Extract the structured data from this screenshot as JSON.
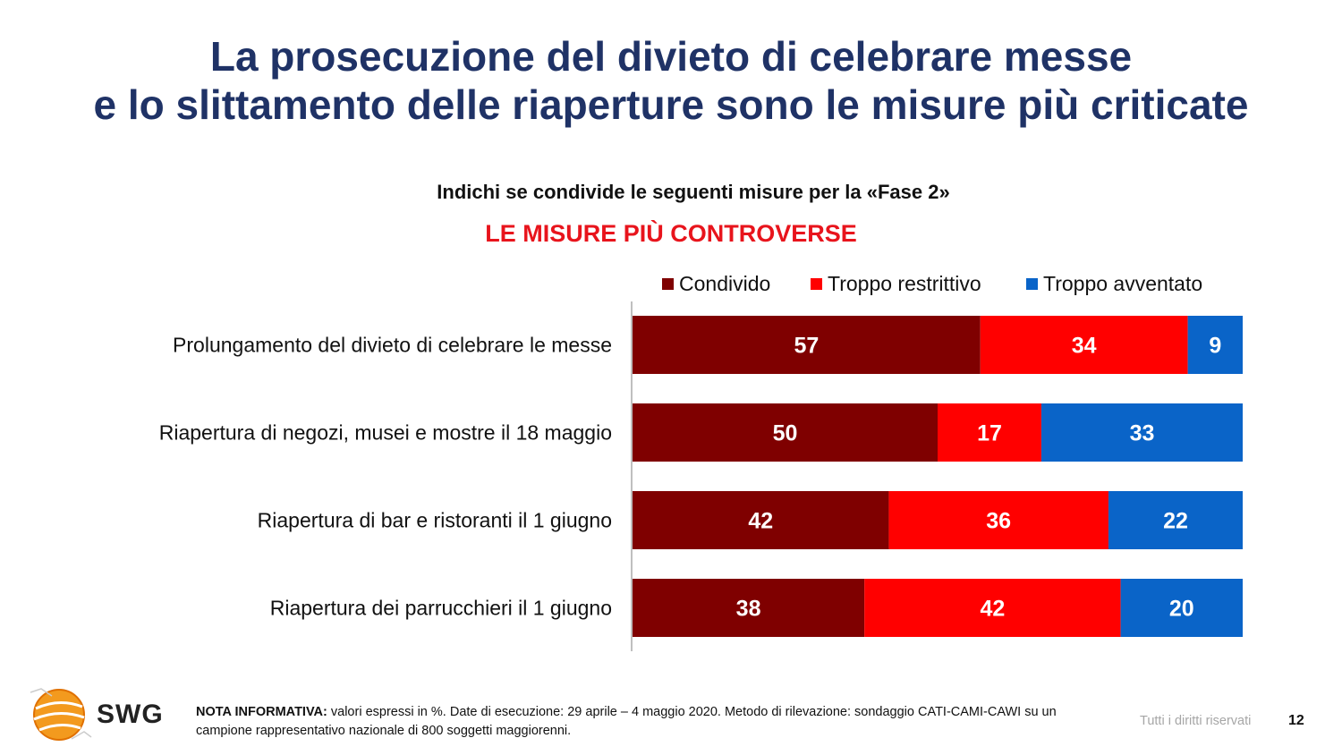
{
  "title_lines": [
    "La prosecuzione del divieto di celebrare messe",
    "e lo slittamento delle riaperture sono le misure più criticate"
  ],
  "subtitle": "Indichi se condivide le seguenti misure per la «Fase 2»",
  "highlight": "LE MISURE PIÙ CONTROVERSE",
  "colors": {
    "title": "#1f3266",
    "condivido": "#7f0000",
    "troppo_restrittivo": "#ff0000",
    "troppo_avventato": "#0a64c8",
    "highlight": "#e8141c"
  },
  "chart_data": {
    "type": "bar",
    "orientation": "horizontal",
    "stacked": true,
    "categories": [
      "Prolungamento del divieto di celebrare le messe",
      "Riapertura di negozi, musei e mostre il 18 maggio",
      "Riapertura di bar e ristoranti il 1 giugno",
      "Riapertura dei parrucchieri il 1 giugno"
    ],
    "series": [
      {
        "name": "Condivido",
        "color": "#7f0000",
        "values": [
          57,
          50,
          42,
          38
        ]
      },
      {
        "name": "Troppo restrittivo",
        "color": "#ff0000",
        "values": [
          34,
          17,
          36,
          42
        ]
      },
      {
        "name": "Troppo avventato",
        "color": "#0a64c8",
        "values": [
          9,
          33,
          22,
          20
        ]
      }
    ],
    "xlim": [
      0,
      100
    ],
    "grid": false,
    "legend_position": "top"
  },
  "footer": {
    "note_label": "NOTA INFORMATIVA:",
    "note_text": " valori espressi in %. Date di esecuzione: 29 aprile – 4 maggio 2020. Metodo di rilevazione: sondaggio CATI-CAMI-CAWI su un campione rappresentativo nazionale di 800 soggetti maggiorenni.",
    "rights": "Tutti i diritti riservati",
    "page_number": "12",
    "logo_text": "SWG"
  }
}
